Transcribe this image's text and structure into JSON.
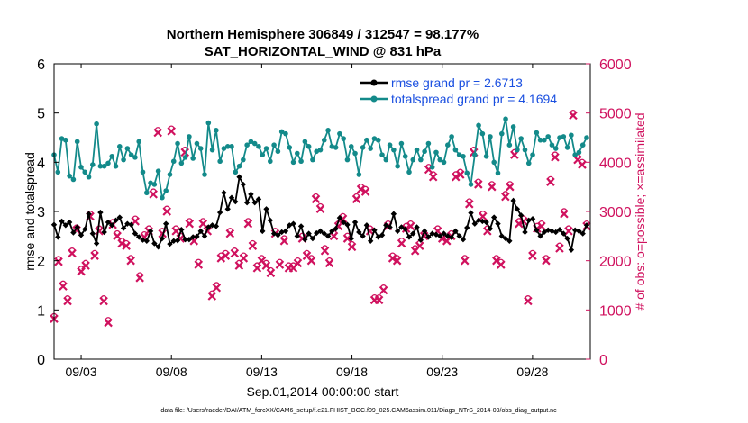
{
  "chart_data": {
    "type": "line",
    "title": "Northern Hemisphere 306849 / 312547 = 98.177%",
    "subtitle": "SAT_HORIZONTAL_WIND @ 831 hPa",
    "xlabel": "Sep.01,2014 00:00:00 start",
    "ylabel": "rmse and totalspread",
    "ylabel_right": "# of obs: o=possible; ×=assimilated",
    "footer": "data file: /Users/raeder/DAI/ATM_forcXX/CAM6_setup/f.e21.FHIST_BGC.f09_025.CAM6assim.011/Diags_NTrS_2014-09/obs_diag_output.nc",
    "xlim": [
      1.5,
      31.2
    ],
    "ylim": [
      0,
      6
    ],
    "ylim_right": [
      0,
      6000
    ],
    "x_ticks": [
      3,
      8,
      13,
      18,
      23,
      28
    ],
    "x_tick_labels": [
      "09/03",
      "09/08",
      "09/13",
      "09/18",
      "09/23",
      "09/28"
    ],
    "y_ticks": [
      "0",
      "1",
      "2",
      "3",
      "4",
      "5",
      "6"
    ],
    "y_ticks_right": [
      "0",
      "1000",
      "2000",
      "3000",
      "4000",
      "5000",
      "6000"
    ],
    "grid": false,
    "legend_position": "top-right",
    "colors": {
      "rmse": "#000000",
      "totalspread": "#138a8a",
      "obs": "#d0115e"
    },
    "series": [
      {
        "name": "rmse grand pr = 2.6713",
        "marker": "diamond",
        "values": [
          2.73,
          2.48,
          2.8,
          2.72,
          2.78,
          2.57,
          2.68,
          2.52,
          2.64,
          2.95,
          2.55,
          2.35,
          2.98,
          2.58,
          2.78,
          2.72,
          2.82,
          2.88,
          2.66,
          2.75,
          2.73,
          2.55,
          2.48,
          2.42,
          2.4,
          2.6,
          2.35,
          2.28,
          2.45,
          2.75,
          2.34,
          2.4,
          2.41,
          2.63,
          2.43,
          2.43,
          2.48,
          2.49,
          2.6,
          2.5,
          2.68,
          2.72,
          2.7,
          2.98,
          3.38,
          3.05,
          3.28,
          3.2,
          3.7,
          3.55,
          3.18,
          3.35,
          3.18,
          3.25,
          2.6,
          3.05,
          2.82,
          2.55,
          2.52,
          2.58,
          2.6,
          2.72,
          2.75,
          2.5,
          2.7,
          2.43,
          2.55,
          2.45,
          2.56,
          2.6,
          2.55,
          2.5,
          2.6,
          2.65,
          2.87,
          2.78,
          2.73,
          2.45,
          2.78,
          2.58,
          2.5,
          2.72,
          2.4,
          2.62,
          2.48,
          2.52,
          2.72,
          2.68,
          2.95,
          2.6,
          2.68,
          2.64,
          2.48,
          2.55,
          2.68,
          2.42,
          2.6,
          2.48,
          2.55,
          2.53,
          2.5,
          2.55,
          2.5,
          2.47,
          2.6,
          2.5,
          2.43,
          2.67,
          2.97,
          2.75,
          2.82,
          2.8,
          2.78,
          2.65,
          2.88,
          2.75,
          2.5,
          2.45,
          2.4,
          3.22,
          3.05,
          2.92,
          2.58,
          2.82,
          2.85,
          2.62,
          2.5,
          2.58,
          2.62,
          2.6,
          2.58,
          2.63,
          2.55,
          2.45,
          2.22,
          2.62,
          2.6,
          2.55,
          2.72
        ]
      },
      {
        "name": "totalspread grand pr = 4.1694",
        "marker": "circle",
        "values": [
          4.15,
          3.8,
          4.48,
          4.45,
          3.72,
          3.65,
          4.42,
          3.9,
          3.8,
          3.7,
          3.95,
          4.78,
          3.92,
          3.92,
          3.98,
          4.12,
          3.92,
          4.32,
          4.05,
          4.28,
          4.15,
          4.1,
          4.42,
          3.8,
          3.38,
          3.58,
          3.55,
          3.82,
          3.28,
          3.42,
          3.75,
          4.02,
          4.38,
          3.98,
          4.1,
          4.52,
          4.08,
          4.38,
          4.28,
          3.75,
          4.8,
          4.25,
          4.65,
          4.02,
          4.28,
          4.32,
          4.32,
          3.8,
          3.92,
          4.05,
          4.35,
          4.42,
          4.38,
          4.32,
          4.15,
          4.28,
          4.02,
          4.35,
          4.22,
          4.62,
          4.58,
          4.3,
          4.0,
          4.18,
          4.02,
          4.42,
          4.32,
          4.05,
          4.22,
          4.25,
          4.45,
          4.65,
          4.32,
          4.3,
          4.58,
          4.48,
          4.05,
          4.32,
          4.18,
          3.75,
          4.3,
          4.45,
          4.28,
          4.48,
          4.45,
          4.15,
          4.05,
          4.35,
          4.25,
          3.92,
          4.38,
          4.12,
          3.8,
          4.05,
          4.25,
          4.05,
          4.22,
          4.38,
          3.9,
          4.2,
          4.05,
          4.0,
          4.35,
          4.52,
          4.25,
          4.15,
          4.12,
          3.78,
          3.55,
          4.15,
          4.75,
          4.58,
          4.12,
          4.52,
          4.0,
          3.78,
          4.58,
          4.88,
          4.35,
          4.72,
          4.25,
          4.48,
          4.25,
          3.98,
          4.15,
          4.6,
          4.45,
          4.45,
          4.52,
          4.35,
          4.28,
          4.5,
          4.52,
          4.3,
          4.55,
          4.15,
          4.2,
          4.35,
          4.5
        ]
      }
    ],
    "obs_series": [
      {
        "name": "# of obs possible",
        "marker": "o",
        "values": [
          820,
          1980,
          1480,
          1180,
          2150,
          2620,
          1780,
          1900,
          2900,
          2100,
          2600,
          1180,
          740,
          2730,
          2500,
          2350,
          2300,
          2000,
          2800,
          1650,
          2480,
          2600,
          3350,
          4600,
          2550,
          3000,
          4630,
          2600,
          2450,
          4200,
          2750,
          2400,
          1920,
          2750,
          2600,
          1280,
          1450,
          2050,
          2100,
          2550,
          2150,
          1900,
          2050,
          2750,
          2300,
          1850,
          2000,
          1900,
          1750,
          2550,
          1920,
          2400,
          1850,
          1850,
          1950,
          2450,
          2100,
          2000,
          3250,
          3050,
          2200,
          1950,
          2500,
          2700,
          2850,
          2450,
          2280,
          3250,
          3450,
          3400,
          2600,
          1200,
          1200,
          1400,
          2700,
          2050,
          2000,
          2350,
          2650,
          2700,
          2200,
          2300,
          2500,
          3850,
          3700,
          2600,
          2450,
          2400,
          2500,
          3700,
          3750,
          2000,
          3150,
          4200,
          3550,
          2900,
          2600,
          3500,
          2000,
          1920,
          3300,
          3500,
          4150,
          2750,
          2800,
          1180,
          2100,
          2650,
          2700,
          2000,
          3600,
          4100,
          2250,
          2950,
          2600,
          4950,
          4050,
          3950,
          2700
        ]
      },
      {
        "name": "# of obs assimilated",
        "marker": "x",
        "values": [
          820,
          1980,
          1480,
          1180,
          2150,
          2620,
          1780,
          1900,
          2900,
          2100,
          2600,
          1180,
          740,
          2730,
          2500,
          2350,
          2300,
          2000,
          2800,
          1650,
          2480,
          2600,
          3350,
          4600,
          2550,
          3000,
          4630,
          2600,
          2450,
          4200,
          2750,
          2400,
          1920,
          2750,
          2600,
          1280,
          1450,
          2050,
          2100,
          2550,
          2150,
          1900,
          2050,
          2750,
          2300,
          1850,
          2000,
          1900,
          1750,
          2550,
          1920,
          2400,
          1850,
          1850,
          1950,
          2450,
          2100,
          2000,
          3250,
          3050,
          2200,
          1950,
          2500,
          2700,
          2850,
          2450,
          2280,
          3250,
          3450,
          3400,
          2600,
          1200,
          1200,
          1400,
          2700,
          2050,
          2000,
          2350,
          2650,
          2700,
          2200,
          2300,
          2500,
          3850,
          3700,
          2600,
          2450,
          2400,
          2500,
          3700,
          3750,
          2000,
          3150,
          4200,
          3550,
          2900,
          2600,
          3500,
          2000,
          1920,
          3300,
          3500,
          4150,
          2750,
          2800,
          1180,
          2100,
          2650,
          2700,
          2000,
          3600,
          4100,
          2250,
          2950,
          2600,
          4950,
          4050,
          3950,
          2700
        ]
      }
    ]
  }
}
